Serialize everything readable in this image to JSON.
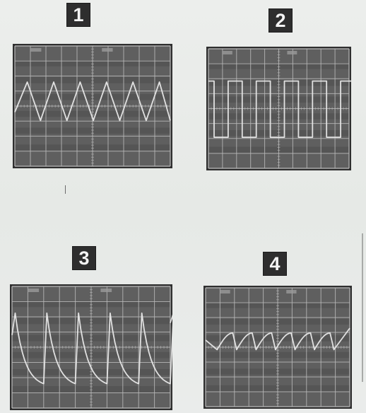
{
  "panels": [
    {
      "label": "1",
      "waveform": "triangle"
    },
    {
      "label": "2",
      "waveform": "square"
    },
    {
      "label": "3",
      "waveform": "sawtooth-exponential"
    },
    {
      "label": "4",
      "waveform": "small-rounded-sawtooth"
    }
  ],
  "colors": {
    "screen": "#5f5f5f",
    "screen_dark": "#4a4a4a",
    "grid": "#b9b9b9",
    "trace": "#e8e8e8",
    "badge": "#2e2e2e"
  }
}
